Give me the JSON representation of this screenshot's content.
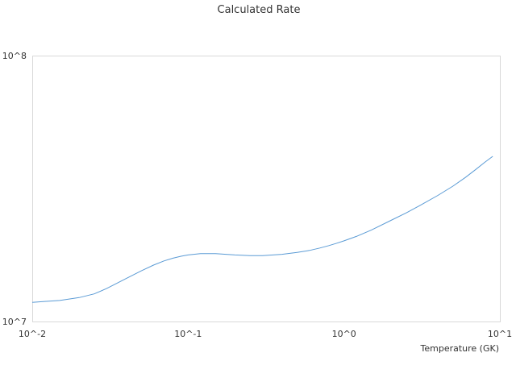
{
  "chart_data": {
    "type": "line",
    "title": "Calculated Rate",
    "xlabel": "Temperature (GK)",
    "ylabel": "",
    "x_scale": "log",
    "y_scale": "log",
    "xlim": [
      0.01,
      10
    ],
    "ylim": [
      10000000,
      100000000
    ],
    "x_tick_labels": [
      "10^-2",
      "10^-1",
      "10^0",
      "10^1"
    ],
    "y_tick_labels": [
      "10^7",
      "10^8"
    ],
    "grid": false,
    "legend": "none",
    "colors": {
      "series": "#5b9bd5",
      "frame": "#d9d9d9",
      "text": "#333333"
    },
    "series": [
      {
        "x": [
          0.01,
          0.012,
          0.015,
          0.02,
          0.025,
          0.03,
          0.04,
          0.05,
          0.06,
          0.07,
          0.08,
          0.09,
          0.1,
          0.12,
          0.15,
          0.2,
          0.25,
          0.3,
          0.4,
          0.5,
          0.6,
          0.7,
          0.8,
          0.9,
          1.0,
          1.2,
          1.5,
          2.0,
          2.5,
          3.0,
          4.0,
          5.0,
          6.0,
          7.0,
          8.0,
          9.0
        ],
        "values": [
          11800000,
          11900000,
          12000000,
          12300000,
          12700000,
          13300000,
          14500000,
          15500000,
          16300000,
          16900000,
          17300000,
          17600000,
          17800000,
          18000000,
          18000000,
          17800000,
          17700000,
          17700000,
          17900000,
          18200000,
          18500000,
          18900000,
          19300000,
          19700000,
          20100000,
          20900000,
          22100000,
          24000000,
          25600000,
          27100000,
          29800000,
          32300000,
          34800000,
          37300000,
          39700000,
          41800000
        ]
      }
    ]
  }
}
